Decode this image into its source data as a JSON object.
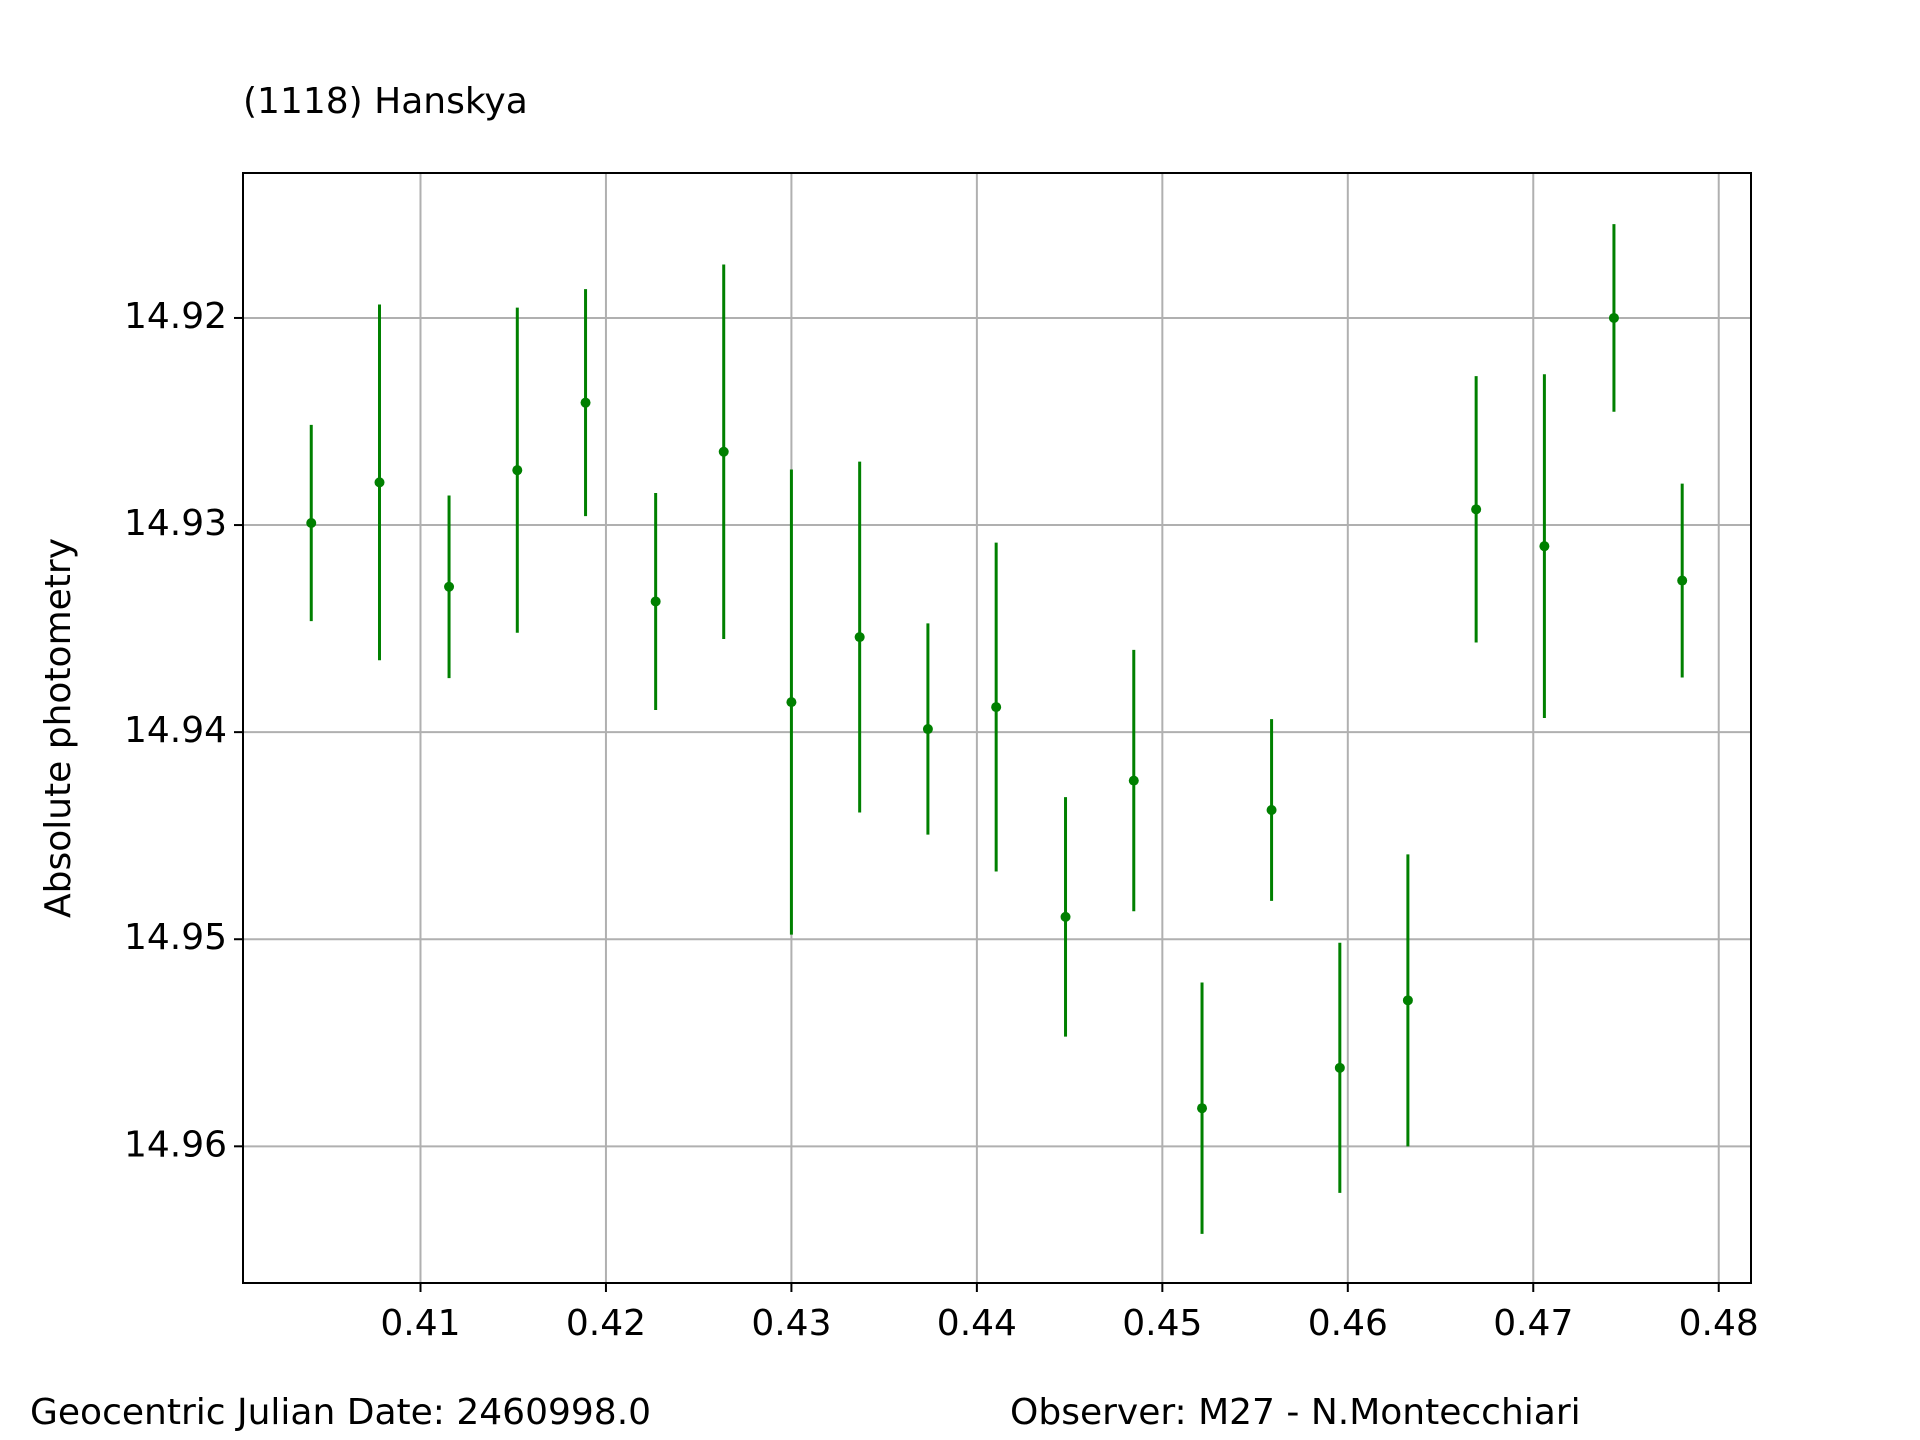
{
  "chart_data": {
    "type": "errorbar",
    "title": "(1118) Hanskya",
    "title_color": "#008000",
    "ylabel": "Absolute photometry",
    "annotations": [
      "Geocentric Julian Date: 2460998.0",
      "Observer: M27 - N.Montecchiari"
    ],
    "series": [
      {
        "color": "#008000",
        "x": [
          0.40411,
          0.40779,
          0.41154,
          0.41522,
          0.4189,
          0.42268,
          0.42635,
          0.43,
          0.43368,
          0.43736,
          0.44104,
          0.44478,
          0.44846,
          0.45214,
          0.45589,
          0.45957,
          0.46324,
          0.46692,
          0.4706,
          0.47435,
          0.47803
        ],
        "values": [
          14.9299,
          14.92794,
          14.93298,
          14.92735,
          14.92409,
          14.93369,
          14.92646,
          14.93855,
          14.93541,
          14.93985,
          14.93879,
          14.94892,
          14.94234,
          14.95816,
          14.94376,
          14.95621,
          14.95295,
          14.92924,
          14.93102,
          14.92,
          14.93268
        ],
        "errors": [
          0.00474,
          0.00859,
          0.00441,
          0.00785,
          0.00548,
          0.00524,
          0.00904,
          0.01123,
          0.00847,
          0.0051,
          0.00794,
          0.00578,
          0.00631,
          0.00607,
          0.00439,
          0.00604,
          0.00705,
          0.00643,
          0.0083,
          0.00453,
          0.00468
        ]
      }
    ],
    "xlim": [
      0.40043,
      0.48174
    ],
    "xticks": [
      0.41,
      0.42,
      0.43,
      0.44,
      0.45,
      0.46,
      0.47,
      0.48
    ],
    "ylim": [
      14.9666,
      14.913
    ],
    "yticks": [
      14.92,
      14.93,
      14.94,
      14.95,
      14.96
    ],
    "grid": true
  }
}
